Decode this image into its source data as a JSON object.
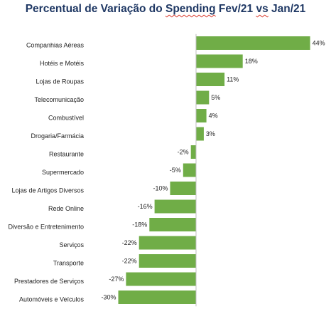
{
  "chart_data": {
    "type": "bar",
    "orientation": "horizontal",
    "title_parts": [
      "Percentual de Variação do ",
      "Spending",
      "  Fev/21 ",
      "vs",
      " Jan/21"
    ],
    "categories": [
      "Companhias Aéreas",
      "Hotéis e Motéis",
      "Lojas de Roupas",
      "Telecomunicação",
      "Combustível",
      "Drogaria/Farmácia",
      "Restaurante",
      "Supermercado",
      "Lojas de Artigos Diversos",
      "Rede Online",
      "Diversão e Entretenimento",
      "Serviços",
      "Transporte",
      "Prestadores de Serviços",
      "Automóveis e Veículos"
    ],
    "values": [
      44,
      18,
      11,
      5,
      4,
      3,
      -2,
      -5,
      -10,
      -16,
      -18,
      -22,
      -22,
      -27,
      -30
    ],
    "value_labels": [
      "44%",
      "18%",
      "11%",
      "5%",
      "4%",
      "3%",
      "-2%",
      "-5%",
      "-10%",
      "-16%",
      "-18%",
      "-22%",
      "-22%",
      "-27%",
      "-30%"
    ],
    "bar_color": "#70ad47",
    "title_color": "#1f3864",
    "xlim": [
      -30,
      44
    ],
    "grid": false,
    "legend": "none"
  }
}
